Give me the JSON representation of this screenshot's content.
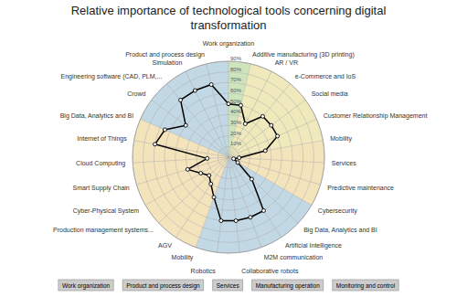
{
  "chart_data": {
    "type": "radar",
    "title": "Relative importance of technological tools concerning digital\ntransformation",
    "categories": [
      "Work organization",
      "Additive manufacturing (3D printing)",
      "AR / VR",
      "e-Commerce and IoS",
      "Social media",
      "Customer Relationship Management",
      "Mobility",
      "Services",
      "Predictive maintenance",
      "Cybersecurity",
      "Big Data, Analytics and BI",
      "Artificial Intelligence",
      "M2M communication",
      "Collaborative robots",
      "Robotics",
      "Mobility",
      "AGV",
      "Production management systems...",
      "Cyber-Physical System",
      "Smart Supply Chain",
      "Cloud Computing",
      "Internet of Things",
      "Big Data, Analytics and BI",
      "Crowd",
      "Engineering software (CAD, PLM,...",
      "Simulation",
      "Product and process design"
    ],
    "values": [
      50,
      50,
      35,
      50,
      50,
      50,
      35,
      10,
      5,
      10,
      30,
      60,
      60,
      60,
      60,
      40,
      30,
      25,
      30,
      40,
      20,
      70,
      65,
      50,
      70,
      70,
      70
    ],
    "color": "#000000",
    "marker": "circle",
    "ylim": [
      0,
      90
    ],
    "yticks": [
      {
        "value": 10,
        "label": "10%"
      },
      {
        "value": 20,
        "label": "20%"
      },
      {
        "value": 30,
        "label": "30%"
      },
      {
        "value": 40,
        "label": "40%"
      },
      {
        "value": 50,
        "label": "50%"
      },
      {
        "value": 60,
        "label": "60%"
      },
      {
        "value": 70,
        "label": "70%"
      },
      {
        "value": 80,
        "label": "80%"
      },
      {
        "value": 90,
        "label": "90%"
      }
    ],
    "grid": true,
    "sectors": [
      {
        "start": 0,
        "end": 1,
        "color": "#b8d8a0"
      },
      {
        "start": 1,
        "end": 6,
        "color": "#e8e0a0"
      },
      {
        "start": 6,
        "end": 9,
        "color": "#f0d8a0"
      },
      {
        "start": 9,
        "end": 15,
        "color": "#a8c8d8"
      },
      {
        "start": 15,
        "end": 22,
        "color": "#f0d8a0"
      },
      {
        "start": 22,
        "end": 27,
        "color": "#a8c8d8"
      }
    ],
    "annotations": [
      "Work organization",
      "Product and process design",
      "Services",
      "Manufacturing operation",
      "Monitoring and control"
    ]
  }
}
